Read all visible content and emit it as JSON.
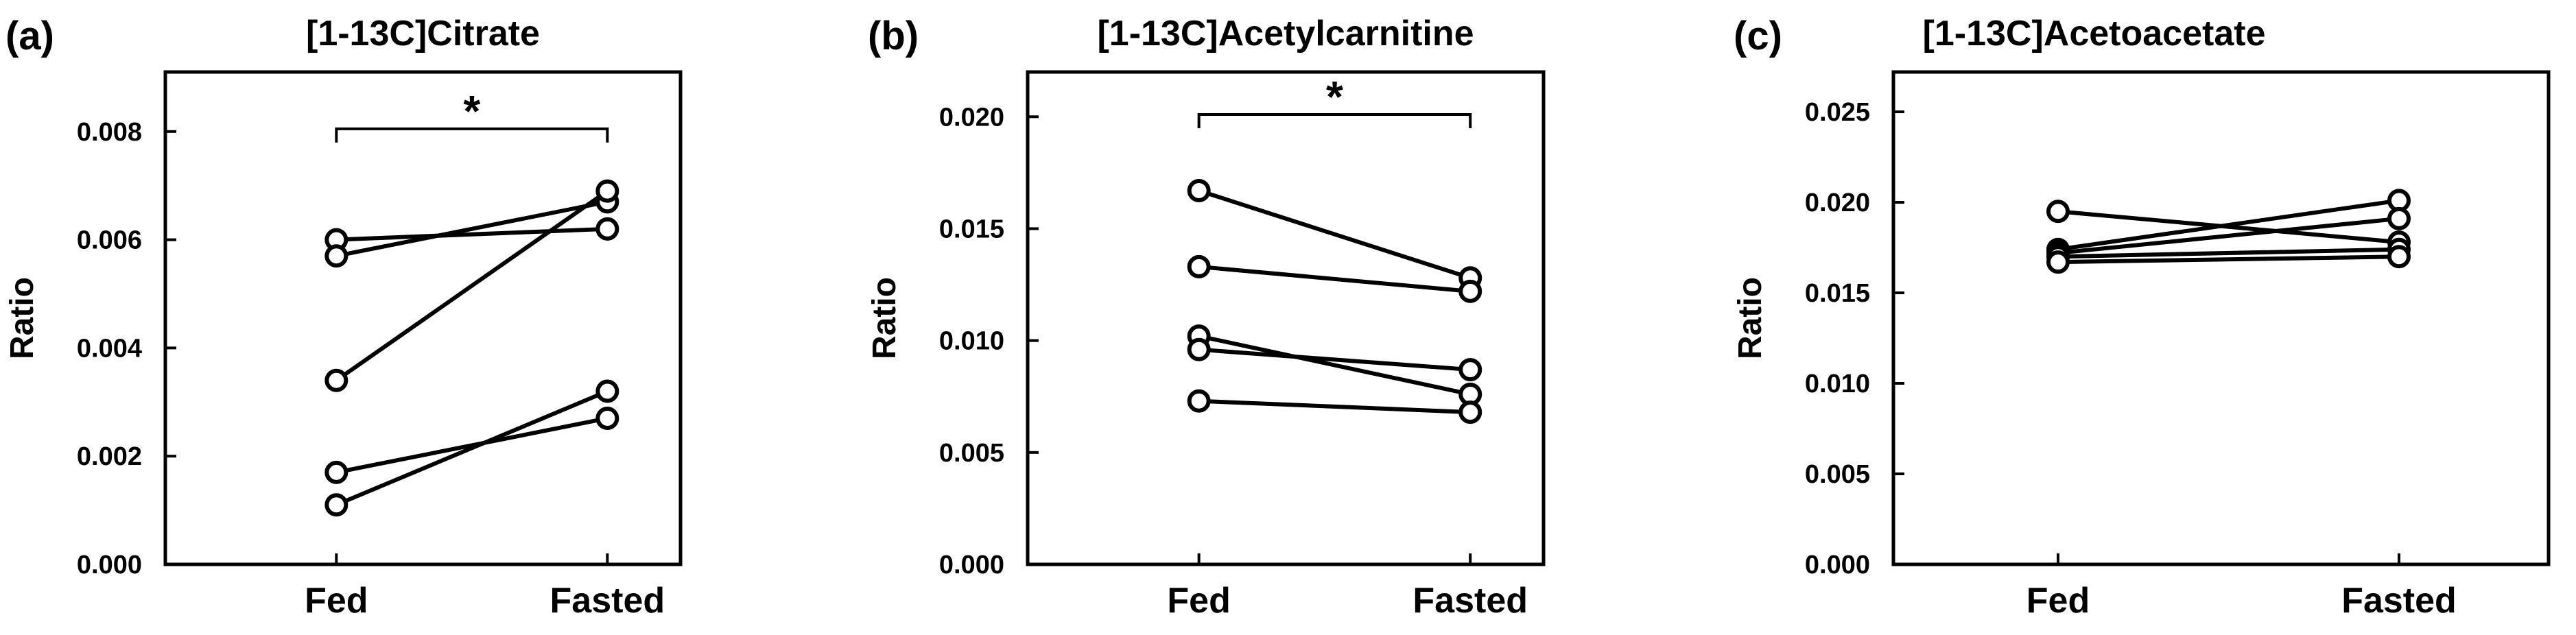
{
  "figure": {
    "panels": [
      "a",
      "b",
      "c"
    ]
  },
  "chart_data": [
    {
      "panel_label": "(a)",
      "type": "line",
      "title": "[1-13C]Citrate",
      "xlabel": "",
      "ylabel": "Ratio",
      "categories": [
        "Fed",
        "Fasted"
      ],
      "ylim": [
        0,
        0.0091
      ],
      "yticks": [
        "0.000",
        "0.002",
        "0.004",
        "0.006",
        "0.008"
      ],
      "ytick_values": [
        0,
        0.002,
        0.004,
        0.006,
        0.008
      ],
      "series": [
        {
          "values": [
            0.006,
            0.0062
          ]
        },
        {
          "values": [
            0.0057,
            0.0067
          ]
        },
        {
          "values": [
            0.0034,
            0.0069
          ]
        },
        {
          "values": [
            0.0017,
            0.0027
          ]
        },
        {
          "values": [
            0.0011,
            0.0032
          ]
        }
      ],
      "significance": {
        "label": "*",
        "from": "Fed",
        "to": "Fasted",
        "y": 0.00805
      }
    },
    {
      "panel_label": "(b)",
      "type": "line",
      "title": "[1-13C]Acetylcarnitine",
      "xlabel": "",
      "ylabel": "Ratio",
      "categories": [
        "Fed",
        "Fasted"
      ],
      "ylim": [
        0,
        0.022
      ],
      "yticks": [
        "0.000",
        "0.005",
        "0.010",
        "0.015",
        "0.020"
      ],
      "ytick_values": [
        0,
        0.005,
        0.01,
        0.015,
        0.02
      ],
      "series": [
        {
          "values": [
            0.0167,
            0.0128
          ]
        },
        {
          "values": [
            0.0133,
            0.0122
          ]
        },
        {
          "values": [
            0.0102,
            0.0076
          ]
        },
        {
          "values": [
            0.0096,
            0.0087
          ]
        },
        {
          "values": [
            0.0073,
            0.0068
          ]
        }
      ],
      "significance": {
        "label": "*",
        "from": "Fed",
        "to": "Fasted",
        "y": 0.0201
      }
    },
    {
      "panel_label": "(c)",
      "type": "line",
      "title": "[1-13C]Acetoacetate",
      "xlabel": "",
      "ylabel": "Ratio",
      "categories": [
        "Fed",
        "Fasted"
      ],
      "ylim": [
        0,
        0.0272
      ],
      "yticks": [
        "0.000",
        "0.005",
        "0.010",
        "0.015",
        "0.020",
        "0.025"
      ],
      "ytick_values": [
        0,
        0.005,
        0.01,
        0.015,
        0.02,
        0.025
      ],
      "series": [
        {
          "values": [
            0.0195,
            0.0178
          ]
        },
        {
          "values": [
            0.0174,
            0.0201
          ]
        },
        {
          "values": [
            0.0172,
            0.0191
          ]
        },
        {
          "values": [
            0.017,
            0.0174
          ]
        },
        {
          "values": [
            0.0167,
            0.017
          ]
        }
      ],
      "significance": null
    }
  ]
}
